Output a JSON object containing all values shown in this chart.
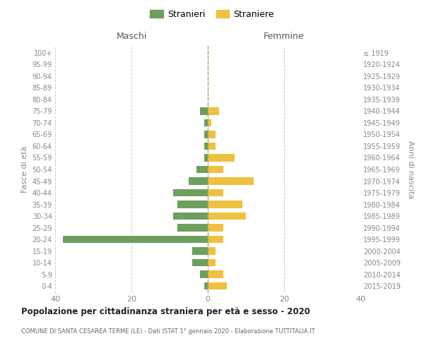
{
  "age_groups": [
    "0-4",
    "5-9",
    "10-14",
    "15-19",
    "20-24",
    "25-29",
    "30-34",
    "35-39",
    "40-44",
    "45-49",
    "50-54",
    "55-59",
    "60-64",
    "65-69",
    "70-74",
    "75-79",
    "80-84",
    "85-89",
    "90-94",
    "95-99",
    "100+"
  ],
  "birth_years": [
    "2015-2019",
    "2010-2014",
    "2005-2009",
    "2000-2004",
    "1995-1999",
    "1990-1994",
    "1985-1989",
    "1980-1984",
    "1975-1979",
    "1970-1974",
    "1965-1969",
    "1960-1964",
    "1955-1959",
    "1950-1954",
    "1945-1949",
    "1940-1944",
    "1935-1939",
    "1930-1934",
    "1925-1929",
    "1920-1924",
    "≤ 1919"
  ],
  "males": [
    1,
    2,
    4,
    4,
    38,
    8,
    9,
    8,
    9,
    5,
    3,
    1,
    1,
    1,
    1,
    2,
    0,
    0,
    0,
    0,
    0
  ],
  "females": [
    5,
    4,
    2,
    2,
    4,
    4,
    10,
    9,
    4,
    12,
    4,
    7,
    2,
    2,
    1,
    3,
    0,
    0,
    0,
    0,
    0
  ],
  "color_males": "#6d9f5e",
  "color_females": "#f0c040",
  "title_main": "Popolazione per cittadinanza straniera per età e sesso - 2020",
  "title_sub": "COMUNE DI SANTA CESAREA TERME (LE) - Dati ISTAT 1° gennaio 2020 - Elaborazione TUTTITALIA.IT",
  "xlabel_left": "Maschi",
  "xlabel_right": "Femmine",
  "ylabel_left": "Fasce di età",
  "ylabel_right": "Anni di nascita",
  "legend_males": "Stranieri",
  "legend_females": "Straniere",
  "xlim": 40,
  "background_color": "#ffffff",
  "grid_color": "#cccccc",
  "dashed_line_color": "#b0a060"
}
